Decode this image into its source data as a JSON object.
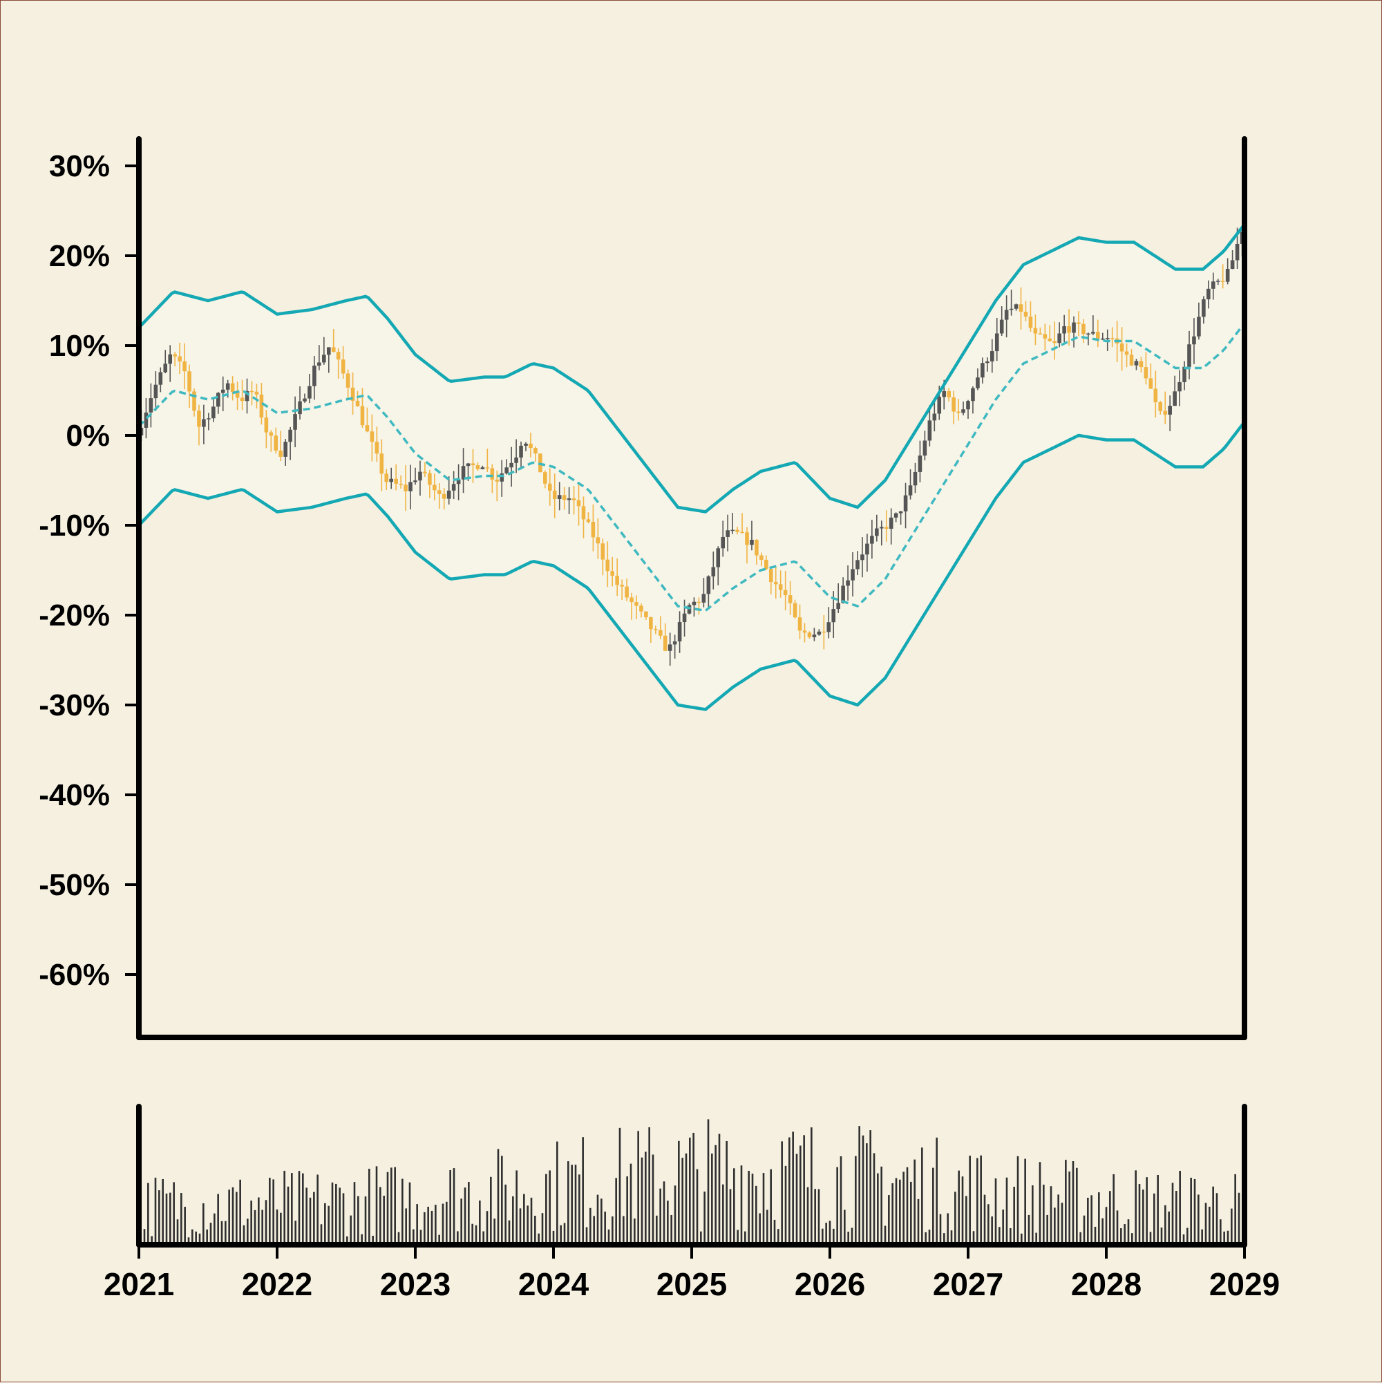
{
  "colors": {
    "background": "#f5f0e0",
    "band_fill": "#f7f4e8",
    "band_line": "#13a8b3",
    "mid_line": "#3fb9c0",
    "candle_up": "#555555",
    "candle_down": "#f0b443",
    "volume_bar": "#2f2f2f",
    "axis": "#000000"
  },
  "chart_data": {
    "type": "candlestick",
    "title": "",
    "xlabel": "",
    "ylabel": "",
    "y_axis": {
      "range": [
        -67,
        33
      ],
      "ticks": [
        30,
        20,
        10,
        0,
        -10,
        -20,
        -30,
        -40,
        -50,
        -60
      ],
      "tick_labels": [
        "30%",
        "20%",
        "10%",
        "0%",
        "-10%",
        "-20%",
        "-30%",
        "-40%",
        "-50%",
        "-60%"
      ]
    },
    "x_axis": {
      "range": [
        2021,
        2029
      ],
      "ticks": [
        2021,
        2022,
        2023,
        2024,
        2025,
        2026,
        2027,
        2028,
        2029
      ],
      "tick_labels": [
        "2021",
        "2022",
        "2023",
        "2024",
        "2025",
        "2026",
        "2027",
        "2028",
        "2029"
      ]
    },
    "grid": false,
    "legend": "none",
    "price_path_percent": [
      [
        2021.0,
        0
      ],
      [
        2021.12,
        5
      ],
      [
        2021.25,
        9
      ],
      [
        2021.35,
        7
      ],
      [
        2021.45,
        1
      ],
      [
        2021.55,
        3
      ],
      [
        2021.65,
        6
      ],
      [
        2021.75,
        4
      ],
      [
        2021.85,
        5
      ],
      [
        2021.95,
        0
      ],
      [
        2022.05,
        -2
      ],
      [
        2022.15,
        2
      ],
      [
        2022.3,
        8
      ],
      [
        2022.4,
        10
      ],
      [
        2022.55,
        5
      ],
      [
        2022.65,
        1
      ],
      [
        2022.8,
        -5
      ],
      [
        2022.95,
        -6
      ],
      [
        2023.05,
        -4
      ],
      [
        2023.2,
        -7
      ],
      [
        2023.35,
        -4
      ],
      [
        2023.5,
        -3
      ],
      [
        2023.6,
        -5
      ],
      [
        2023.75,
        -2
      ],
      [
        2023.8,
        0
      ],
      [
        2023.9,
        -3
      ],
      [
        2024.0,
        -7
      ],
      [
        2024.15,
        -7
      ],
      [
        2024.3,
        -11
      ],
      [
        2024.45,
        -16
      ],
      [
        2024.6,
        -19
      ],
      [
        2024.75,
        -22
      ],
      [
        2024.85,
        -24
      ],
      [
        2025.0,
        -19
      ],
      [
        2025.1,
        -18
      ],
      [
        2025.25,
        -11
      ],
      [
        2025.35,
        -11
      ],
      [
        2025.45,
        -12
      ],
      [
        2025.6,
        -16
      ],
      [
        2025.7,
        -18
      ],
      [
        2025.8,
        -22
      ],
      [
        2025.95,
        -22
      ],
      [
        2026.05,
        -19
      ],
      [
        2026.2,
        -14
      ],
      [
        2026.35,
        -11
      ],
      [
        2026.5,
        -9
      ],
      [
        2026.6,
        -6
      ],
      [
        2026.75,
        2
      ],
      [
        2026.85,
        5
      ],
      [
        2026.95,
        2
      ],
      [
        2027.1,
        7
      ],
      [
        2027.2,
        10
      ],
      [
        2027.3,
        14
      ],
      [
        2027.4,
        14
      ],
      [
        2027.5,
        11
      ],
      [
        2027.65,
        10
      ],
      [
        2027.7,
        12
      ],
      [
        2027.8,
        12
      ],
      [
        2027.95,
        11
      ],
      [
        2028.05,
        11
      ],
      [
        2028.15,
        9
      ],
      [
        2028.3,
        7
      ],
      [
        2028.4,
        2
      ],
      [
        2028.5,
        4
      ],
      [
        2028.6,
        9
      ],
      [
        2028.75,
        16
      ],
      [
        2028.9,
        18
      ],
      [
        2029.0,
        23
      ]
    ],
    "bollinger_middle": [
      [
        2021.0,
        1
      ],
      [
        2021.25,
        5
      ],
      [
        2021.5,
        4
      ],
      [
        2021.75,
        5
      ],
      [
        2022.0,
        2.5
      ],
      [
        2022.25,
        3
      ],
      [
        2022.5,
        4
      ],
      [
        2022.65,
        4.5
      ],
      [
        2022.8,
        2
      ],
      [
        2023.0,
        -2
      ],
      [
        2023.25,
        -5
      ],
      [
        2023.5,
        -4.5
      ],
      [
        2023.65,
        -4.5
      ],
      [
        2023.85,
        -3
      ],
      [
        2024.0,
        -3.5
      ],
      [
        2024.25,
        -6
      ],
      [
        2024.5,
        -11
      ],
      [
        2024.75,
        -16
      ],
      [
        2024.9,
        -19
      ],
      [
        2025.1,
        -19.5
      ],
      [
        2025.3,
        -17
      ],
      [
        2025.5,
        -15
      ],
      [
        2025.75,
        -14
      ],
      [
        2026.0,
        -18
      ],
      [
        2026.2,
        -19
      ],
      [
        2026.4,
        -16
      ],
      [
        2026.6,
        -11
      ],
      [
        2026.8,
        -6
      ],
      [
        2027.0,
        -1
      ],
      [
        2027.2,
        4
      ],
      [
        2027.4,
        8
      ],
      [
        2027.6,
        9.5
      ],
      [
        2027.8,
        11
      ],
      [
        2028.0,
        10.5
      ],
      [
        2028.2,
        10.5
      ],
      [
        2028.35,
        9
      ],
      [
        2028.5,
        7.5
      ],
      [
        2028.7,
        7.5
      ],
      [
        2028.85,
        9.5
      ],
      [
        2029.0,
        12.5
      ]
    ],
    "bollinger_width": 11,
    "volume": {
      "units": "relative",
      "range": [
        0,
        1
      ]
    }
  }
}
